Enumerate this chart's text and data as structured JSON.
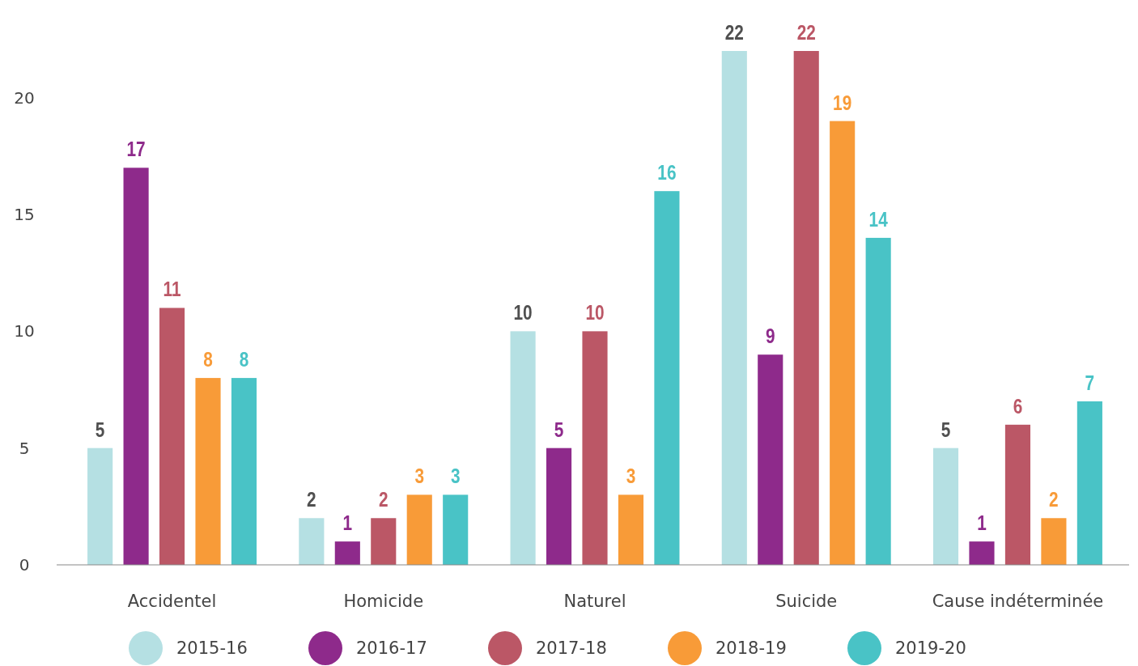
{
  "chart_data": {
    "type": "bar",
    "categories": [
      "Accidentel",
      "Homicide",
      "Naturel",
      "Suicide",
      "Cause indéterminée"
    ],
    "series": [
      {
        "name": "2015-16",
        "color": "#b5e0e3",
        "values": [
          5,
          2,
          10,
          22,
          5
        ]
      },
      {
        "name": "2016-17",
        "color": "#8e2a8b",
        "values": [
          17,
          1,
          5,
          9,
          1
        ]
      },
      {
        "name": "2017-18",
        "color": "#bb5766",
        "values": [
          11,
          2,
          10,
          22,
          6
        ]
      },
      {
        "name": "2018-19",
        "color": "#f89b38",
        "values": [
          8,
          3,
          3,
          19,
          2
        ]
      },
      {
        "name": "2019-20",
        "color": "#49c3c6",
        "values": [
          8,
          3,
          16,
          14,
          7
        ]
      }
    ],
    "ylim": [
      0,
      22
    ],
    "yticks": [
      0,
      5,
      10,
      15,
      20
    ],
    "grid": false,
    "legend": "bottom",
    "data_labels": true
  }
}
